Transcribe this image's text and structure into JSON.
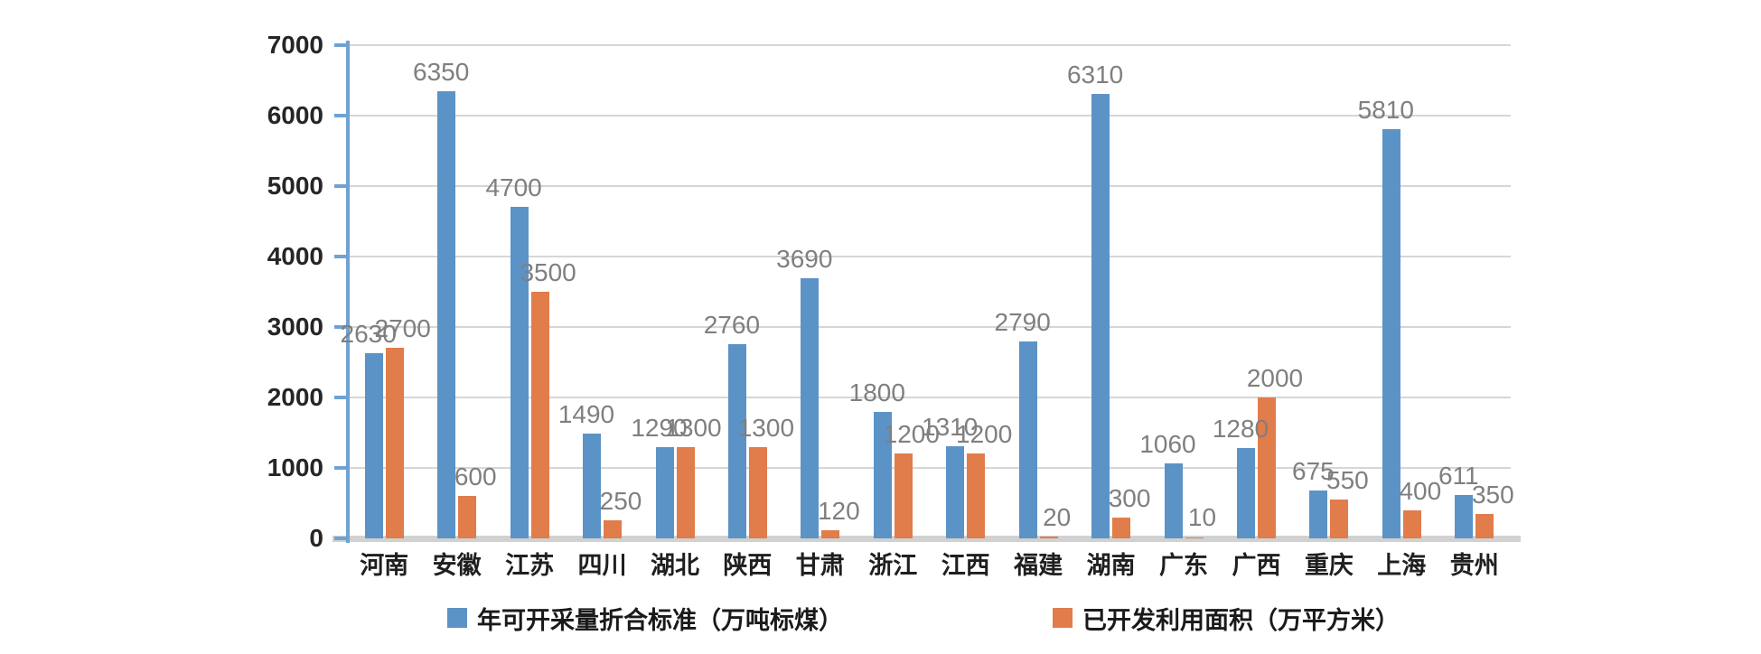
{
  "chart_data": {
    "type": "bar",
    "categories": [
      "河南",
      "安徽",
      "江苏",
      "四川",
      "湖北",
      "陕西",
      "甘肃",
      "浙江",
      "江西",
      "福建",
      "湖南",
      "广东",
      "广西",
      "重庆",
      "上海",
      "贵州"
    ],
    "series": [
      {
        "name": "年可开采量折合标准（万吨标煤）",
        "color": "#5b93c6",
        "values": [
          2630,
          6350,
          4700,
          1490,
          1290,
          2760,
          3690,
          1800,
          1310,
          2790,
          6310,
          1060,
          1280,
          675,
          5810,
          611
        ]
      },
      {
        "name": "已开发利用面积（万平方米）",
        "color": "#e17c4b",
        "values": [
          2700,
          600,
          3500,
          250,
          1300,
          1300,
          120,
          1200,
          1200,
          20,
          300,
          10,
          2000,
          550,
          400,
          350
        ]
      }
    ],
    "title": "",
    "xlabel": "",
    "ylabel": "",
    "ylim": [
      0,
      7000
    ],
    "ytick_step": 1000,
    "yticks": [
      "0",
      "1000",
      "2000",
      "3000",
      "4000",
      "5000",
      "6000",
      "7000"
    ],
    "grid": true,
    "data_labels": true,
    "legend_position": "bottom",
    "colors": {
      "series1": "#5b93c6",
      "series2": "#e17c4b",
      "gridline": "#d6d6d6",
      "axis": "#6fa2d2",
      "baseline": "#d1d1d1",
      "tick_label": "#262626",
      "data_label": "#7f7f7f"
    }
  }
}
